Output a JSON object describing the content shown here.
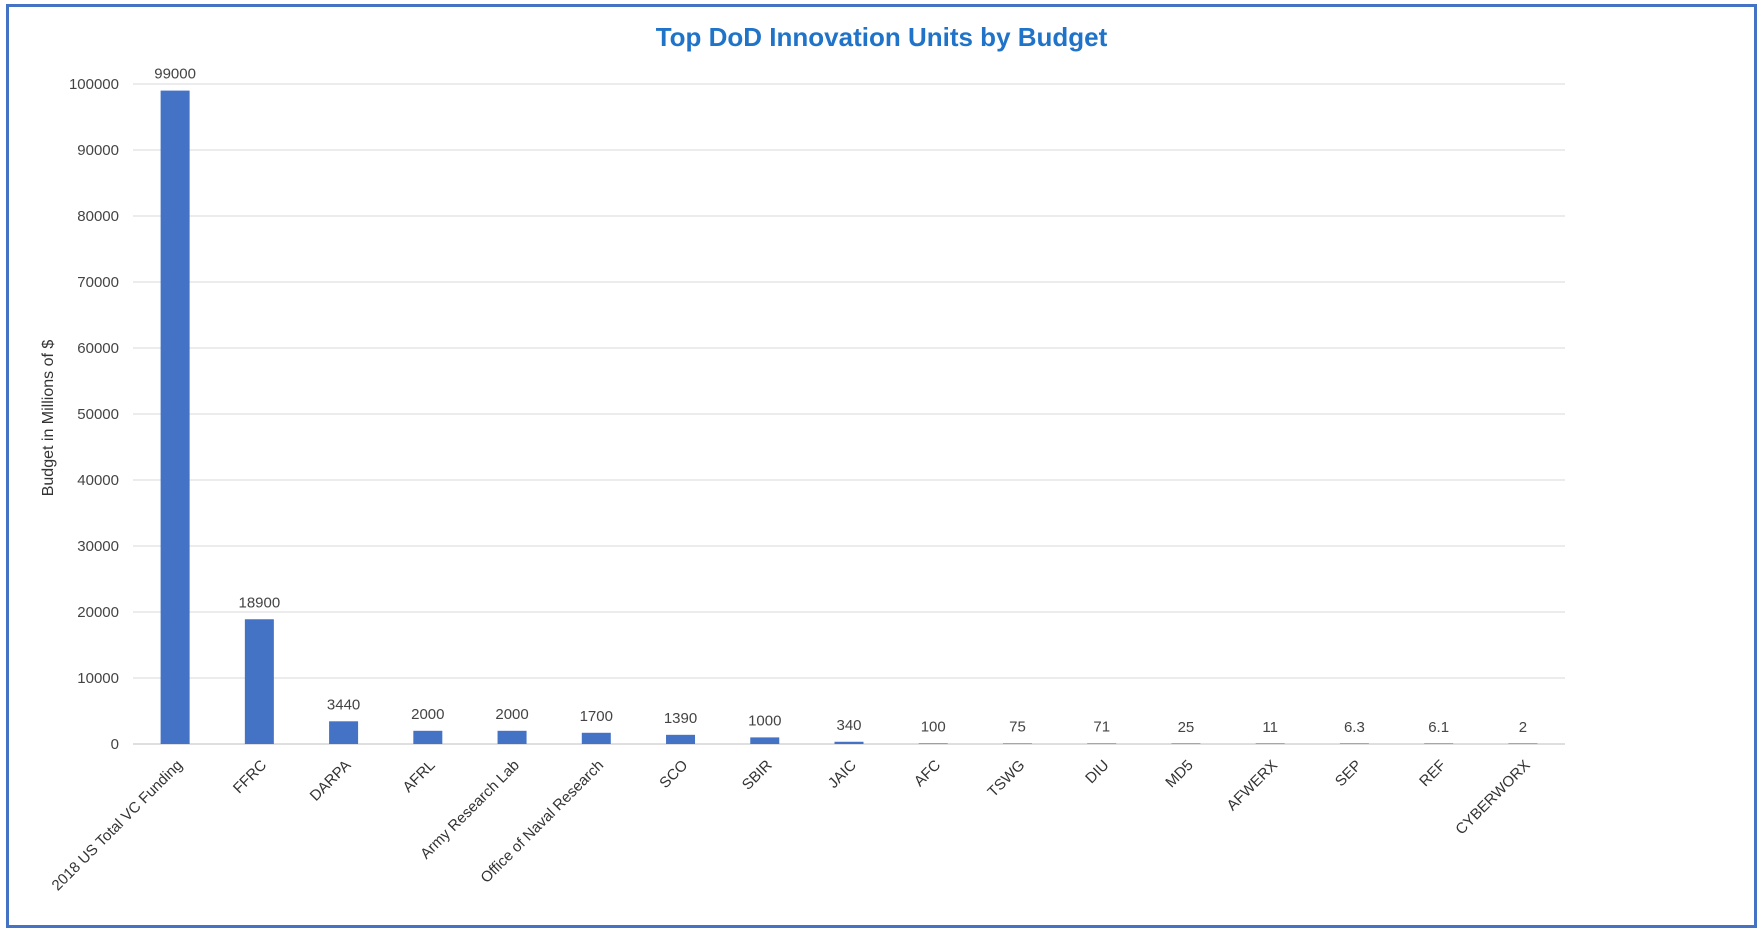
{
  "chart_data": {
    "type": "bar",
    "title": "Top DoD Innovation Units by Budget",
    "xlabel": "",
    "ylabel": "Budget in Millions of $",
    "ylim": [
      0,
      100000
    ],
    "yticks": [
      0,
      10000,
      20000,
      30000,
      40000,
      50000,
      60000,
      70000,
      80000,
      90000,
      100000
    ],
    "grid": true,
    "legend": "none",
    "bar_color": "#4472c4",
    "categories": [
      "2018 US Total VC Funding",
      "FFRC",
      "DARPA",
      "AFRL",
      "Army Research Lab",
      "Office of Naval Research",
      "SCO",
      "SBIR",
      "JAIC",
      "AFC",
      "TSWG",
      "DIU",
      "MD5",
      "AFWERX",
      "SEP",
      "REF",
      "CYBERWORX"
    ],
    "values": [
      99000,
      18900,
      3440,
      2000,
      2000,
      1700,
      1390,
      1000,
      340,
      100,
      75,
      71,
      25,
      11,
      6.3,
      6.1,
      2
    ],
    "value_labels": [
      "99000",
      "18900",
      "3440",
      "2000",
      "2000",
      "1700",
      "1390",
      "1000",
      "340",
      "100",
      "75",
      "71",
      "25",
      "11",
      "6.3",
      "6.1",
      "2"
    ]
  }
}
